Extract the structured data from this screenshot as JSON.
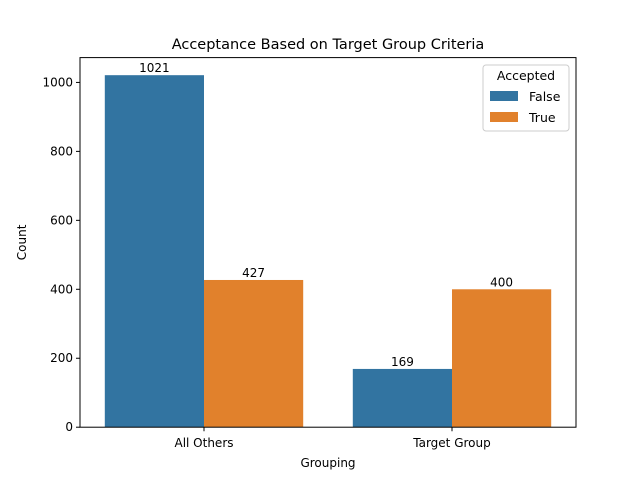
{
  "chart_data": {
    "type": "bar",
    "title": "Acceptance Based on Target Group Criteria",
    "xlabel": "Grouping",
    "ylabel": "Count",
    "categories": [
      "All Others",
      "Target Group"
    ],
    "series": [
      {
        "name": "False",
        "values": [
          1021,
          169
        ],
        "color": "#3274a1"
      },
      {
        "name": "True",
        "values": [
          427,
          400
        ],
        "color": "#e1812c"
      }
    ],
    "ylim": [
      0,
      1072
    ],
    "yticks": [
      0,
      200,
      400,
      600,
      800,
      1000
    ],
    "legend": {
      "title": "Accepted",
      "placement": "top-right"
    },
    "grid": false
  }
}
